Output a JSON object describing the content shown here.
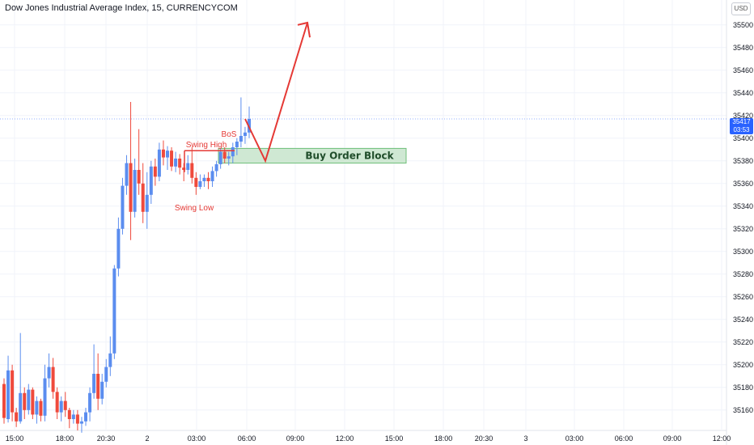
{
  "title": "Dow Jones Industrial Average Index, 15, CURRENCYCOM",
  "currency_button": "USD",
  "price_tag": {
    "price": "35417",
    "countdown": "03:53"
  },
  "colors": {
    "up": "#5b8def",
    "down": "#ef4a3c",
    "grid": "#f0f3fa",
    "annotation": "#e53935",
    "order_block_fill": "#cfe8d3",
    "order_block_border": "#6fbf7a"
  },
  "chart_data": {
    "type": "candlestick",
    "y_axis": {
      "ylim": [
        35142,
        35522
      ],
      "ticks": [
        35160,
        35180,
        35200,
        35220,
        35240,
        35260,
        35280,
        35300,
        35320,
        35340,
        35360,
        35380,
        35400,
        35420,
        35440,
        35460,
        35480,
        35500
      ]
    },
    "x_axis": {
      "ticks": [
        "15:00",
        "18:00",
        "20:30",
        "2",
        "03:00",
        "06:00",
        "09:00",
        "12:00",
        "15:00",
        "18:00",
        "20:30",
        "3",
        "03:00",
        "06:00",
        "09:00",
        "12:00"
      ]
    },
    "candles": [
      [
        35183,
        35188,
        35148,
        35153
      ],
      [
        35152,
        35208,
        35149,
        35195
      ],
      [
        35195,
        35200,
        35150,
        35158
      ],
      [
        35158,
        35162,
        35145,
        35150
      ],
      [
        35150,
        35228,
        35148,
        35175
      ],
      [
        35175,
        35180,
        35152,
        35160
      ],
      [
        35160,
        35183,
        35156,
        35178
      ],
      [
        35178,
        35180,
        35152,
        35156
      ],
      [
        35156,
        35172,
        35148,
        35168
      ],
      [
        35168,
        35170,
        35150,
        35155
      ],
      [
        35155,
        35200,
        35150,
        35188
      ],
      [
        35188,
        35210,
        35180,
        35198
      ],
      [
        35198,
        35206,
        35170,
        35176
      ],
      [
        35176,
        35180,
        35152,
        35158
      ],
      [
        35158,
        35172,
        35150,
        35168
      ],
      [
        35168,
        35176,
        35154,
        35160
      ],
      [
        35160,
        35162,
        35144,
        35152
      ],
      [
        35152,
        35160,
        35148,
        35156
      ],
      [
        35156,
        35160,
        35142,
        35148
      ],
      [
        35148,
        35154,
        35140,
        35150
      ],
      [
        35150,
        35162,
        35146,
        35158
      ],
      [
        35158,
        35180,
        35150,
        35175
      ],
      [
        35175,
        35218,
        35170,
        35192
      ],
      [
        35192,
        35210,
        35160,
        35170
      ],
      [
        35170,
        35192,
        35165,
        35185
      ],
      [
        35185,
        35205,
        35180,
        35198
      ],
      [
        35198,
        35225,
        35190,
        35210
      ],
      [
        35210,
        35288,
        35205,
        35285
      ],
      [
        35285,
        35330,
        35278,
        35320
      ],
      [
        35320,
        35365,
        35315,
        35358
      ],
      [
        35358,
        35385,
        35350,
        35378
      ],
      [
        35378,
        35432,
        35310,
        35335
      ],
      [
        35335,
        35382,
        35330,
        35372
      ],
      [
        35372,
        35408,
        35350,
        35360
      ],
      [
        35360,
        35378,
        35325,
        35335
      ],
      [
        35335,
        35370,
        35320,
        35350
      ],
      [
        35350,
        35380,
        35342,
        35375
      ],
      [
        35375,
        35382,
        35358,
        35366
      ],
      [
        35366,
        35396,
        35362,
        35390
      ],
      [
        35390,
        35398,
        35376,
        35383
      ],
      [
        35383,
        35393,
        35372,
        35389
      ],
      [
        35389,
        35392,
        35371,
        35375
      ],
      [
        35375,
        35388,
        35370,
        35382
      ],
      [
        35382,
        35386,
        35368,
        35374
      ],
      [
        35374,
        35378,
        35362,
        35372
      ],
      [
        35372,
        35385,
        35368,
        35378
      ],
      [
        35378,
        35392,
        35360,
        35365
      ],
      [
        35365,
        35370,
        35350,
        35357
      ],
      [
        35357,
        35368,
        35355,
        35362
      ],
      [
        35362,
        35368,
        35357,
        35365
      ],
      [
        35365,
        35370,
        35355,
        35362
      ],
      [
        35362,
        35375,
        35357,
        35371
      ],
      [
        35371,
        35380,
        35366,
        35377
      ],
      [
        35377,
        35391,
        35373,
        35388
      ],
      [
        35388,
        35392,
        35378,
        35382
      ],
      [
        35382,
        35388,
        35376,
        35384
      ],
      [
        35384,
        35396,
        35378,
        35392
      ],
      [
        35392,
        35400,
        35385,
        35397
      ],
      [
        35397,
        35436,
        35392,
        35402
      ],
      [
        35402,
        35410,
        35395,
        35405
      ],
      [
        35405,
        35428,
        35400,
        35417
      ]
    ],
    "annotations": [
      {
        "text": "BoS",
        "type": "label"
      },
      {
        "text": "Swing High",
        "type": "label"
      },
      {
        "text": "Swing Low",
        "type": "label"
      },
      {
        "text": "Buy Order Block",
        "type": "zone",
        "y": [
          35378,
          35391
        ]
      }
    ],
    "projection": {
      "type": "arrow",
      "points": [
        [
          35417
        ],
        [
          35380
        ],
        [
          35502
        ]
      ]
    }
  }
}
